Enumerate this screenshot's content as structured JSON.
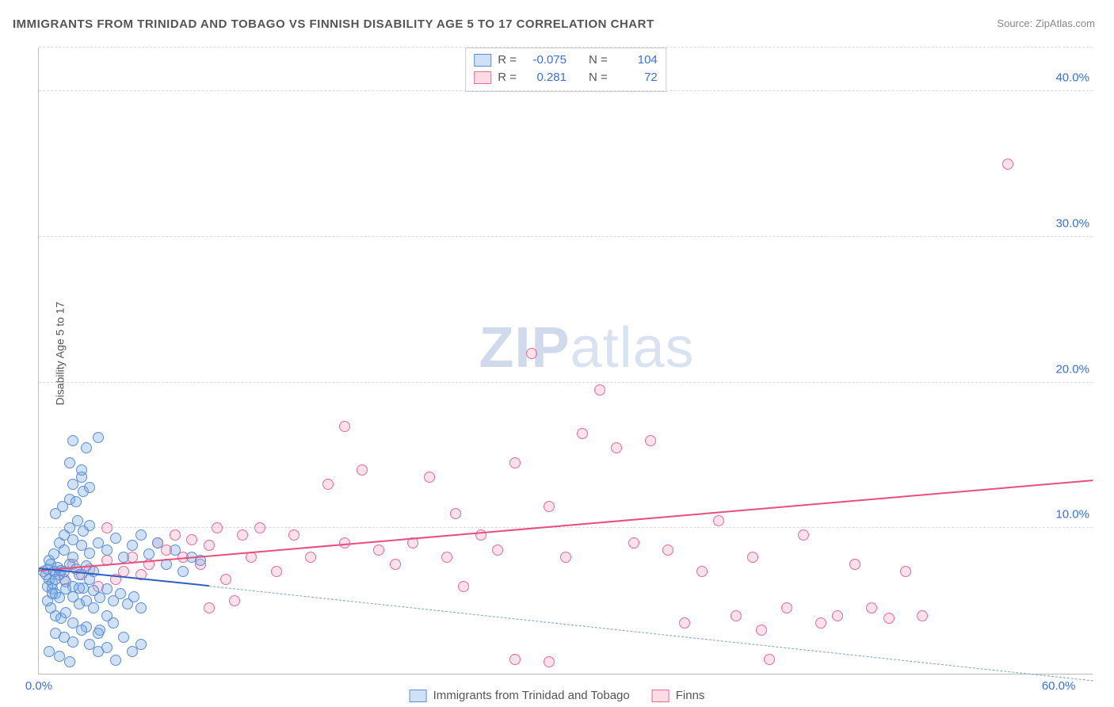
{
  "title": "IMMIGRANTS FROM TRINIDAD AND TOBAGO VS FINNISH DISABILITY AGE 5 TO 17 CORRELATION CHART",
  "source_label": "Source:",
  "source_name": "ZipAtlas.com",
  "ylabel": "Disability Age 5 to 17",
  "watermark_a": "ZIP",
  "watermark_b": "atlas",
  "axes": {
    "xmin": 0,
    "xmax": 62,
    "ymin": 0,
    "ymax": 43,
    "yticks": [
      10,
      20,
      30,
      40
    ],
    "ytick_labels": [
      "10.0%",
      "20.0%",
      "30.0%",
      "40.0%"
    ],
    "xticks": [
      0,
      60
    ],
    "xtick_labels": [
      "0.0%",
      "60.0%"
    ]
  },
  "corr_legend": {
    "rows": [
      {
        "swatch": "blue",
        "r_label": "R =",
        "r": "-0.075",
        "n_label": "N =",
        "n": "104"
      },
      {
        "swatch": "pink",
        "r_label": "R =",
        "r": "0.281",
        "n_label": "N =",
        "n": "72"
      }
    ]
  },
  "series_legend": [
    {
      "swatch": "blue",
      "label": "Immigrants from Trinidad and Tobago"
    },
    {
      "swatch": "pink",
      "label": "Finns"
    }
  ],
  "trend_lines": {
    "pink": {
      "x1": 0,
      "y1": 7.0,
      "x2": 62,
      "y2": 13.2
    },
    "blue_solid": {
      "x1": 0,
      "y1": 7.2,
      "x2": 10,
      "y2": 6.0
    },
    "blue_dash": {
      "x1": 10,
      "y1": 6.0,
      "x2": 62,
      "y2": -0.5
    }
  },
  "series": {
    "blue": [
      [
        0.3,
        7
      ],
      [
        0.4,
        6.8
      ],
      [
        0.5,
        7.2
      ],
      [
        0.6,
        6.5
      ],
      [
        0.7,
        7.5
      ],
      [
        0.8,
        6.2
      ],
      [
        0.5,
        6.0
      ],
      [
        0.6,
        7.8
      ],
      [
        0.9,
        7.0
      ],
      [
        1.0,
        6.5
      ],
      [
        1.1,
        7.3
      ],
      [
        1.2,
        6.8
      ],
      [
        1.3,
        7.1
      ],
      [
        0.8,
        5.8
      ],
      [
        0.9,
        8.2
      ],
      [
        1.0,
        5.5
      ],
      [
        1.5,
        7.0
      ],
      [
        1.6,
        6.3
      ],
      [
        1.8,
        7.5
      ],
      [
        2.0,
        6.0
      ],
      [
        2.2,
        7.2
      ],
      [
        2.4,
        6.8
      ],
      [
        2.6,
        5.9
      ],
      [
        2.8,
        7.4
      ],
      [
        3.0,
        6.5
      ],
      [
        3.2,
        7.0
      ],
      [
        0.7,
        4.5
      ],
      [
        1.0,
        4.0
      ],
      [
        1.3,
        3.8
      ],
      [
        1.6,
        4.2
      ],
      [
        2.0,
        3.5
      ],
      [
        2.4,
        4.8
      ],
      [
        2.8,
        3.2
      ],
      [
        3.2,
        4.5
      ],
      [
        3.6,
        3.0
      ],
      [
        4.0,
        4.0
      ],
      [
        4.4,
        3.5
      ],
      [
        1.0,
        2.8
      ],
      [
        1.5,
        2.5
      ],
      [
        2.0,
        2.2
      ],
      [
        2.5,
        3.0
      ],
      [
        3.0,
        2.0
      ],
      [
        3.5,
        2.8
      ],
      [
        4.0,
        1.8
      ],
      [
        5.0,
        2.5
      ],
      [
        5.5,
        1.5
      ],
      [
        6.0,
        2.0
      ],
      [
        1.2,
        9.0
      ],
      [
        1.5,
        9.5
      ],
      [
        1.8,
        10.0
      ],
      [
        2.0,
        9.2
      ],
      [
        2.3,
        10.5
      ],
      [
        2.6,
        9.8
      ],
      [
        3.0,
        10.2
      ],
      [
        1.0,
        11.0
      ],
      [
        1.4,
        11.5
      ],
      [
        1.8,
        12.0
      ],
      [
        2.2,
        11.8
      ],
      [
        2.6,
        12.5
      ],
      [
        2.0,
        13.0
      ],
      [
        2.5,
        13.5
      ],
      [
        3.0,
        12.8
      ],
      [
        1.5,
        8.5
      ],
      [
        2.0,
        8.0
      ],
      [
        2.5,
        8.8
      ],
      [
        3.0,
        8.3
      ],
      [
        3.5,
        9.0
      ],
      [
        4.0,
        8.5
      ],
      [
        4.5,
        9.3
      ],
      [
        5.0,
        8.0
      ],
      [
        5.5,
        8.8
      ],
      [
        6.0,
        9.5
      ],
      [
        6.5,
        8.2
      ],
      [
        7.0,
        9.0
      ],
      [
        7.5,
        7.5
      ],
      [
        8.0,
        8.5
      ],
      [
        8.5,
        7.0
      ],
      [
        9.0,
        8.0
      ],
      [
        9.5,
        7.8
      ],
      [
        0.5,
        5.0
      ],
      [
        0.8,
        5.5
      ],
      [
        1.2,
        5.2
      ],
      [
        1.6,
        5.8
      ],
      [
        2.0,
        5.3
      ],
      [
        2.4,
        5.9
      ],
      [
        2.8,
        5.0
      ],
      [
        3.2,
        5.7
      ],
      [
        3.6,
        5.2
      ],
      [
        4.0,
        5.8
      ],
      [
        4.4,
        5.0
      ],
      [
        4.8,
        5.5
      ],
      [
        5.2,
        4.8
      ],
      [
        5.6,
        5.3
      ],
      [
        6.0,
        4.5
      ],
      [
        2.0,
        16.0
      ],
      [
        2.8,
        15.5
      ],
      [
        3.5,
        16.2
      ],
      [
        1.8,
        14.5
      ],
      [
        2.5,
        14.0
      ],
      [
        0.6,
        1.5
      ],
      [
        1.2,
        1.2
      ],
      [
        1.8,
        0.8
      ],
      [
        3.5,
        1.5
      ],
      [
        4.5,
        0.9
      ]
    ],
    "pink": [
      [
        1.0,
        7.0
      ],
      [
        1.5,
        6.5
      ],
      [
        2.0,
        7.5
      ],
      [
        2.5,
        6.8
      ],
      [
        3.0,
        7.2
      ],
      [
        3.5,
        6.0
      ],
      [
        4.0,
        7.8
      ],
      [
        4.5,
        6.5
      ],
      [
        5.0,
        7.0
      ],
      [
        5.5,
        8.0
      ],
      [
        6.0,
        6.8
      ],
      [
        6.5,
        7.5
      ],
      [
        7.0,
        9.0
      ],
      [
        7.5,
        8.5
      ],
      [
        8.0,
        9.5
      ],
      [
        8.5,
        8.0
      ],
      [
        9.0,
        9.2
      ],
      [
        9.5,
        7.5
      ],
      [
        10.0,
        8.8
      ],
      [
        10.5,
        10.0
      ],
      [
        11.0,
        6.5
      ],
      [
        11.5,
        5.0
      ],
      [
        12.0,
        9.5
      ],
      [
        12.5,
        8.0
      ],
      [
        13.0,
        10.0
      ],
      [
        14.0,
        7.0
      ],
      [
        15.0,
        9.5
      ],
      [
        16.0,
        8.0
      ],
      [
        17.0,
        13.0
      ],
      [
        18.0,
        9.0
      ],
      [
        19.0,
        14.0
      ],
      [
        20.0,
        8.5
      ],
      [
        21.0,
        7.5
      ],
      [
        22.0,
        9.0
      ],
      [
        23.0,
        13.5
      ],
      [
        24.0,
        8.0
      ],
      [
        24.5,
        11.0
      ],
      [
        25.0,
        6.0
      ],
      [
        26.0,
        9.5
      ],
      [
        27.0,
        8.5
      ],
      [
        28.0,
        14.5
      ],
      [
        29.0,
        22.0
      ],
      [
        30.0,
        11.5
      ],
      [
        31.0,
        8.0
      ],
      [
        32.0,
        16.5
      ],
      [
        33.0,
        19.5
      ],
      [
        34.0,
        15.5
      ],
      [
        35.0,
        9.0
      ],
      [
        36.0,
        16.0
      ],
      [
        37.0,
        8.5
      ],
      [
        38.0,
        3.5
      ],
      [
        39.0,
        7.0
      ],
      [
        40.0,
        10.5
      ],
      [
        41.0,
        4.0
      ],
      [
        42.0,
        8.0
      ],
      [
        42.5,
        3.0
      ],
      [
        44.0,
        4.5
      ],
      [
        45.0,
        9.5
      ],
      [
        46.0,
        3.5
      ],
      [
        47.0,
        4.0
      ],
      [
        48.0,
        7.5
      ],
      [
        49.0,
        4.5
      ],
      [
        50.0,
        3.8
      ],
      [
        51.0,
        7.0
      ],
      [
        52.0,
        4.0
      ],
      [
        43.0,
        1.0
      ],
      [
        28.0,
        1.0
      ],
      [
        30.0,
        0.8
      ],
      [
        18.0,
        17.0
      ],
      [
        57.0,
        35.0
      ],
      [
        10.0,
        4.5
      ],
      [
        4.0,
        10.0
      ]
    ]
  }
}
